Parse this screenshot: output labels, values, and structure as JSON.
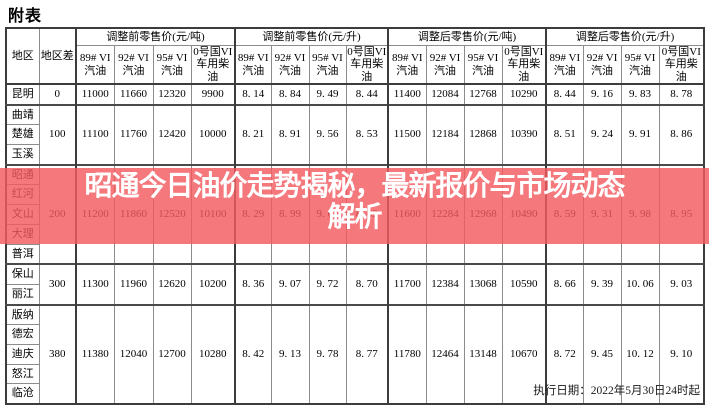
{
  "title": "附表",
  "banner": {
    "line1": "昭通今日油价走势揭秘，最新报价与市场动态",
    "line2": "解析",
    "bg_color": "#f15a5f",
    "text_color": "#ffffff"
  },
  "footer": {
    "execution_date": "执行日期：2022年5月30日24时起"
  },
  "table": {
    "region_header": "地区",
    "diff_header": "地区差",
    "group_headers": [
      "调整前零售价(元/吨)",
      "调整前零售价(元/升)",
      "调整后零售价(元/吨)",
      "调整后零售价(元/升)"
    ],
    "product_headers": [
      "89# VI汽油",
      "92# VI汽油",
      "95# VI汽油",
      "0号国VI车用柴油"
    ],
    "groups": [
      {
        "regions": [
          "昆明"
        ],
        "diff": "0",
        "values": [
          "11000",
          "11660",
          "12320",
          "9900",
          "8. 14",
          "8. 84",
          "9. 49",
          "8. 44",
          "11400",
          "12084",
          "12768",
          "10290",
          "8. 44",
          "9. 16",
          "9. 83",
          "8. 78"
        ]
      },
      {
        "regions": [
          "曲靖",
          "楚雄",
          "玉溪"
        ],
        "diff": "100",
        "values": [
          "11100",
          "11760",
          "12420",
          "10000",
          "8. 21",
          "8. 91",
          "9. 56",
          "8. 53",
          "11500",
          "12184",
          "12868",
          "10390",
          "8. 51",
          "9. 24",
          "9. 91",
          "8. 86"
        ]
      },
      {
        "regions": [
          "昭通",
          "红河",
          "文山",
          "大理",
          "普洱"
        ],
        "diff": "200",
        "values": [
          "11200",
          "11860",
          "12520",
          "10100",
          "8. 29",
          "8. 99",
          "9. 64",
          "8. 62",
          "11600",
          "12284",
          "12968",
          "10490",
          "8. 59",
          "9. 31",
          "9. 98",
          "8. 95"
        ]
      },
      {
        "regions": [
          "保山",
          "丽江"
        ],
        "diff": "300",
        "values": [
          "11300",
          "11960",
          "12620",
          "10200",
          "8. 36",
          "9. 07",
          "9. 72",
          "8. 70",
          "11700",
          "12384",
          "13068",
          "10590",
          "8. 66",
          "9. 39",
          "10. 06",
          "9. 03"
        ]
      },
      {
        "regions": [
          "版纳",
          "德宏",
          "迪庆",
          "怒江",
          "临沧"
        ],
        "diff": "380",
        "values": [
          "11380",
          "12040",
          "12700",
          "10280",
          "8. 42",
          "9. 13",
          "9. 78",
          "8. 77",
          "11780",
          "12464",
          "13148",
          "10670",
          "8. 72",
          "9. 45",
          "10. 12",
          "9. 10"
        ]
      }
    ]
  }
}
